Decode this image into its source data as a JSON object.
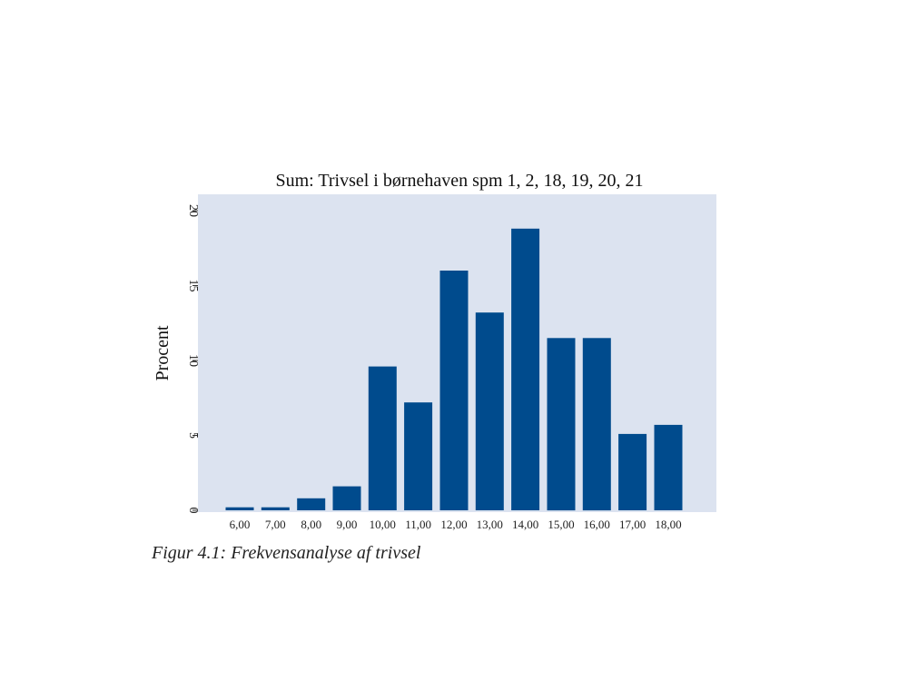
{
  "caption": "Figur 4.1: Frekvensanalyse af trivsel",
  "chart_data": {
    "type": "bar",
    "title": "Sum: Trivsel i børnehaven spm 1, 2, 18, 19, 20, 21",
    "xlabel": "",
    "ylabel": "Procent",
    "categories": [
      "6,00",
      "7,00",
      "8,00",
      "9,00",
      "10,00",
      "11,00",
      "12,00",
      "13,00",
      "14,00",
      "15,00",
      "16,00",
      "17,00",
      "18,00"
    ],
    "values": [
      0.2,
      0.2,
      0.8,
      1.6,
      9.6,
      7.2,
      16.0,
      13.2,
      18.8,
      11.5,
      11.5,
      5.1,
      5.7
    ],
    "yticks": [
      "0",
      "5",
      "10",
      "15",
      "20"
    ],
    "ylim": [
      0,
      21
    ],
    "grid": false,
    "colors": {
      "plot_background": "#dce3f0",
      "bar": "#004b8d"
    }
  }
}
